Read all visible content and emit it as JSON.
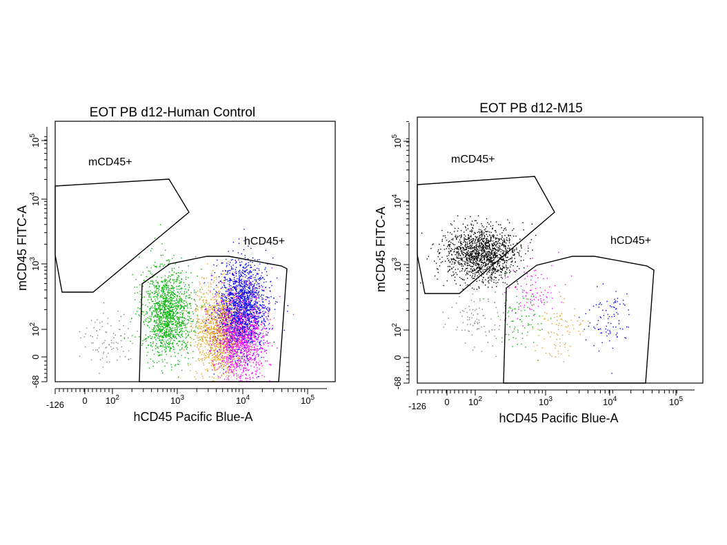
{
  "chart_data": [
    {
      "type": "scatter",
      "title": "EOT PB d12-Human Control",
      "xlabel": "hCD45 Pacific Blue-A",
      "ylabel": "mCD45 FITC-A",
      "x_scale": "biexponential",
      "y_scale": "biexponential",
      "xlim": [
        -126,
        262144
      ],
      "ylim": [
        -68,
        262144
      ],
      "x_ticks": [
        "-126",
        "0",
        "10^2",
        "10^3",
        "10^4",
        "10^5"
      ],
      "y_ticks": [
        "-68",
        "0",
        "10^2",
        "10^3",
        "10^4",
        "10^5"
      ],
      "gates": [
        {
          "name": "mCD45+",
          "count_visible": "none"
        },
        {
          "name": "hCD45+",
          "count_visible": "high"
        }
      ],
      "series": [
        {
          "color": "#808080",
          "x_center": 30,
          "y_center": 10,
          "events": "sparse",
          "population": "ungated"
        },
        {
          "color": "#00b400",
          "x_center": 700,
          "y_center": 180,
          "events": "dense"
        },
        {
          "color": "#e0a020",
          "x_center": 4500,
          "y_center": 90,
          "events": "dense"
        },
        {
          "color": "#ff00ff",
          "x_center": 9000,
          "y_center": 30,
          "events": "dense"
        },
        {
          "color": "#0000ff",
          "x_center": 10000,
          "y_center": 250,
          "events": "dense"
        }
      ]
    },
    {
      "type": "scatter",
      "title": "EOT PB d12-M15",
      "xlabel": "hCD45 Pacific Blue-A",
      "ylabel": "mCD45 FITC-A",
      "x_scale": "biexponential",
      "y_scale": "biexponential",
      "xlim": [
        -126,
        262144
      ],
      "ylim": [
        -68,
        262144
      ],
      "x_ticks": [
        "-126",
        "0",
        "10^2",
        "10^3",
        "10^4",
        "10^5"
      ],
      "y_ticks": [
        "-68",
        "0",
        "10^2",
        "10^3",
        "10^4",
        "10^5"
      ],
      "gates": [
        {
          "name": "mCD45+",
          "count_visible": "high"
        },
        {
          "name": "hCD45+",
          "count_visible": "low"
        }
      ],
      "series": [
        {
          "color": "#808080",
          "x_center": 100,
          "y_center": 150,
          "events": "sparse",
          "population": "ungated"
        },
        {
          "color": "#000000",
          "x_center": 120,
          "y_center": 1500,
          "events": "dense",
          "population": "mCD45+"
        },
        {
          "color": "#00b400",
          "x_center": 400,
          "y_center": 150,
          "events": "sparse"
        },
        {
          "color": "#e0a020",
          "x_center": 1500,
          "y_center": 100,
          "events": "sparse"
        },
        {
          "color": "#ff00ff",
          "x_center": 600,
          "y_center": 400,
          "events": "sparse"
        },
        {
          "color": "#0000ff",
          "x_center": 9000,
          "y_center": 150,
          "events": "sparse"
        }
      ]
    }
  ]
}
